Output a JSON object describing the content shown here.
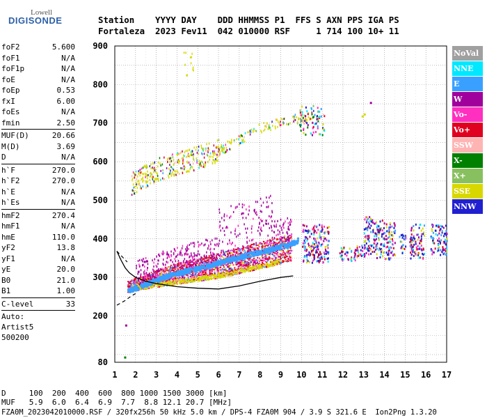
{
  "logo": {
    "line1": "Lowell",
    "line2": "DIGISONDE"
  },
  "header": {
    "line1": "Station    YYYY DAY    DDD HHMMSS P1  FFS S AXN PPS IGA PS",
    "line2": "Fortaleza  2023 Fev11  042 010000 RSF     1 714 100 10+ 11"
  },
  "params": [
    {
      "group": [
        {
          "name": "foF2",
          "value": "5.600"
        },
        {
          "name": "foF1",
          "value": "N/A"
        },
        {
          "name": "foF1p",
          "value": "N/A"
        },
        {
          "name": "foE",
          "value": "N/A"
        },
        {
          "name": "foEp",
          "value": "0.53"
        },
        {
          "name": "fxI",
          "value": "6.00"
        },
        {
          "name": "foEs",
          "value": "N/A"
        },
        {
          "name": "fmin",
          "value": "2.50"
        }
      ]
    },
    {
      "group": [
        {
          "name": "MUF(D)",
          "value": "20.66"
        },
        {
          "name": "M(D)",
          "value": "3.69"
        },
        {
          "name": "D",
          "value": "N/A"
        }
      ]
    },
    {
      "group": [
        {
          "name": "h`F",
          "value": "270.0"
        },
        {
          "name": "h`F2",
          "value": "270.0"
        },
        {
          "name": "h`E",
          "value": "N/A"
        },
        {
          "name": "h`Es",
          "value": "N/A"
        }
      ]
    },
    {
      "group": [
        {
          "name": "hmF2",
          "value": "270.4"
        },
        {
          "name": "hmF1",
          "value": "N/A"
        },
        {
          "name": "hmE",
          "value": "110.0"
        },
        {
          "name": "yF2",
          "value": "13.8"
        },
        {
          "name": "yF1",
          "value": "N/A"
        },
        {
          "name": "yE",
          "value": "20.0"
        },
        {
          "name": "B0",
          "value": "21.0"
        },
        {
          "name": "B1",
          "value": "1.00"
        }
      ]
    },
    {
      "group": [
        {
          "name": "C-level",
          "value": "33"
        }
      ]
    }
  ],
  "auto": {
    "line1": "Auto:",
    "line2": "Artist5",
    "line3": "500200"
  },
  "legend": [
    {
      "label": "NoVal",
      "color": "#a0a0a0"
    },
    {
      "label": "NNE",
      "color": "#00e8ff"
    },
    {
      "label": "E",
      "color": "#3aa0ff"
    },
    {
      "label": "W",
      "color": "#a0009c"
    },
    {
      "label": "Vo-",
      "color": "#ff30c0"
    },
    {
      "label": "Vo+",
      "color": "#e00020"
    },
    {
      "label": "SSW",
      "color": "#ffb4b4"
    },
    {
      "label": "X-",
      "color": "#008000"
    },
    {
      "label": "X+",
      "color": "#88c060"
    },
    {
      "label": "SSE",
      "color": "#d8d800"
    },
    {
      "label": "NNW",
      "color": "#2020d0"
    }
  ],
  "footer": {
    "line1": "D     100  200  400  600  800 1000 1500 3000 [km]",
    "line2": "MUF   5.9  6.0  6.4  6.9  7.7  8.8 12.1 20.7 [MHz]",
    "line3": "FZA0M_2023042010000.RSF / 320fx256h 50 kHz 5.0 km / DPS-4 FZA0M 904 / 3.9 S 321.6 E  Ion2Png 1.3.20"
  },
  "chart_data": {
    "type": "scatter",
    "xlim": [
      1,
      17
    ],
    "ylim": [
      80,
      900
    ],
    "x_ticks": [
      1,
      2,
      3,
      4,
      5,
      6,
      7,
      8,
      9,
      10,
      11,
      12,
      13,
      14,
      15,
      16,
      17
    ],
    "y_ticks": [
      80,
      200,
      300,
      400,
      500,
      600,
      700,
      800,
      900
    ],
    "grid": true,
    "x_tick_labels": [
      "1",
      "2",
      "3",
      "4",
      "5",
      "6",
      "7",
      "8",
      "9",
      "10",
      "11",
      "12",
      "13",
      "14",
      "15",
      "16",
      "17"
    ],
    "y_tick_labels": [
      "80",
      "200",
      "300",
      "400",
      "500",
      "600",
      "700",
      "800",
      "900"
    ],
    "trace_O": [
      [
        1.6,
        268
      ],
      [
        2.0,
        275
      ],
      [
        2.5,
        285
      ],
      [
        3.0,
        295
      ],
      [
        3.5,
        305
      ],
      [
        4.0,
        313
      ],
      [
        4.5,
        320
      ],
      [
        5.0,
        325
      ],
      [
        5.5,
        333
      ],
      [
        6.0,
        340
      ],
      [
        6.5,
        348
      ],
      [
        7.0,
        355
      ],
      [
        7.5,
        362
      ],
      [
        8.0,
        368
      ],
      [
        8.5,
        375
      ],
      [
        9.0,
        383
      ],
      [
        9.5,
        390
      ],
      [
        9.8,
        398
      ]
    ],
    "trace_low": [
      [
        1.5,
        262
      ],
      [
        2.5,
        272
      ],
      [
        3.5,
        280
      ],
      [
        4.5,
        288
      ],
      [
        5.5,
        295
      ],
      [
        6.5,
        305
      ],
      [
        7.5,
        318
      ],
      [
        8.5,
        330
      ],
      [
        9.5,
        345
      ]
    ],
    "trace_second": [
      [
        1.8,
        545
      ],
      [
        2.5,
        565
      ],
      [
        3.0,
        580
      ],
      [
        3.5,
        590
      ],
      [
        4.0,
        598
      ],
      [
        4.5,
        606
      ],
      [
        5.0,
        612
      ],
      [
        5.5,
        620
      ],
      [
        6.0,
        630
      ],
      [
        6.5,
        645
      ],
      [
        7.0,
        660
      ],
      [
        7.5,
        675
      ],
      [
        8.0,
        688
      ],
      [
        9.0,
        705
      ],
      [
        10.0,
        715
      ],
      [
        10.8,
        725
      ]
    ],
    "profile": [
      [
        1.1,
        368
      ],
      [
        1.3,
        345
      ],
      [
        1.5,
        325
      ],
      [
        1.7,
        312
      ],
      [
        2.0,
        300
      ],
      [
        2.5,
        290
      ],
      [
        3.0,
        284
      ],
      [
        4.0,
        276
      ],
      [
        5.0,
        272
      ],
      [
        6.0,
        270
      ],
      [
        7.0,
        278
      ],
      [
        8.0,
        290
      ],
      [
        9.0,
        300
      ],
      [
        9.6,
        304
      ]
    ],
    "profile_dashed_low": [
      [
        1.1,
        228
      ],
      [
        1.5,
        240
      ],
      [
        1.8,
        252
      ],
      [
        2.0,
        258
      ]
    ],
    "high_clusters": [
      [
        10.0,
        11.3,
        340,
        440
      ],
      [
        11.8,
        12.4,
        345,
        380
      ],
      [
        12.5,
        13.0,
        345,
        385
      ],
      [
        13.0,
        13.5,
        355,
        460
      ],
      [
        13.5,
        14.0,
        350,
        450
      ],
      [
        14.0,
        14.5,
        348,
        445
      ],
      [
        14.7,
        15.0,
        360,
        415
      ],
      [
        15.2,
        15.9,
        350,
        440
      ],
      [
        16.2,
        17.0,
        360,
        440
      ]
    ]
  }
}
